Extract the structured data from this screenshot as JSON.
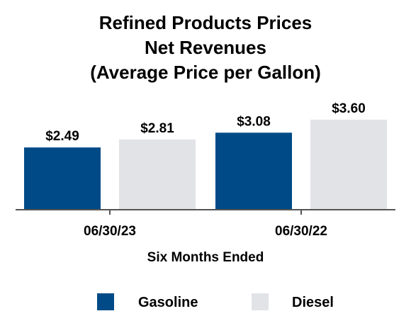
{
  "chart_data": {
    "type": "bar",
    "title_lines": [
      "Refined Products Prices",
      "Net Revenues",
      "(Average Price per Gallon)"
    ],
    "categories": [
      "06/30/23",
      "06/30/22"
    ],
    "xlabel": "Six Months Ended",
    "ylabel": "",
    "ylim": [
      0,
      3.6
    ],
    "grid": false,
    "legend_position": "bottom",
    "series": [
      {
        "name": "Gasoline",
        "color": "#004b87",
        "values": [
          2.49,
          3.08
        ],
        "labels": [
          "$2.49",
          "$3.08"
        ]
      },
      {
        "name": "Diesel",
        "color": "#e2e3e7",
        "values": [
          2.81,
          3.6
        ],
        "labels": [
          "$2.81",
          "$3.60"
        ]
      }
    ]
  }
}
